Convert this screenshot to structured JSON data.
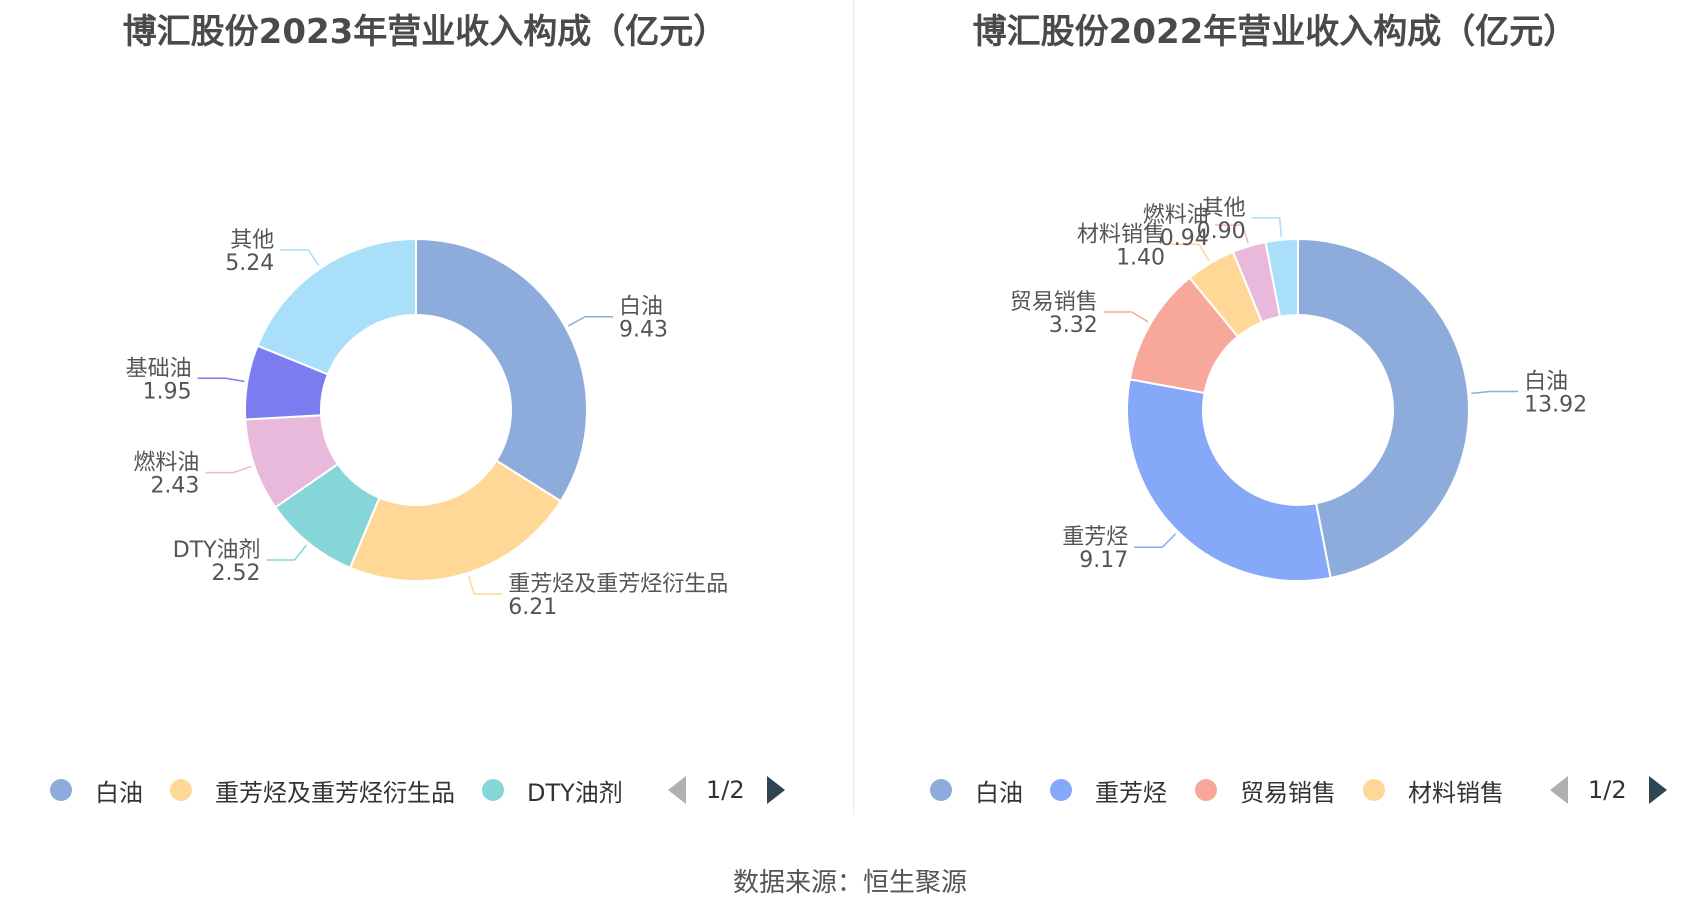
{
  "source_text": "数据来源：恒生聚源",
  "chart_data": [
    {
      "type": "pie",
      "title": "博汇股份2023年营业收入构成（亿元）",
      "slices": [
        {
          "name": "白油",
          "value": 9.43,
          "value_label": "9.43",
          "color": "#8eacdb"
        },
        {
          "name": "重芳烃及重芳烃衍生品",
          "value": 6.21,
          "value_label": "6.21",
          "color": "#ffd898"
        },
        {
          "name": "DTY油剂",
          "value": 2.52,
          "value_label": "2.52",
          "color": "#86d6d9"
        },
        {
          "name": "燃料油",
          "value": 2.43,
          "value_label": "2.43",
          "color": "#e8b9da"
        },
        {
          "name": "基础油",
          "value": 1.95,
          "value_label": "1.95",
          "color": "#7b7cf0"
        },
        {
          "name": "其他",
          "value": 5.24,
          "value_label": "5.24",
          "color": "#a9dff8"
        }
      ],
      "legend_visible": [
        "白油",
        "重芳烃及重芳烃衍生品",
        "DTY油剂"
      ],
      "legend_page": "1/2",
      "legend_placement": "bottom"
    },
    {
      "type": "pie",
      "title": "博汇股份2022年营业收入构成（亿元）",
      "slices": [
        {
          "name": "白油",
          "value": 13.92,
          "value_label": "13.92",
          "color": "#8eacdb"
        },
        {
          "name": "重芳烃",
          "value": 9.17,
          "value_label": "9.17",
          "color": "#86a8f8"
        },
        {
          "name": "贸易销售",
          "value": 3.32,
          "value_label": "3.32",
          "color": "#f8a89a"
        },
        {
          "name": "材料销售",
          "value": 1.4,
          "value_label": "1.40",
          "color": "#ffd898"
        },
        {
          "name": "燃料油",
          "value": 0.94,
          "value_label": "0.94",
          "color": "#e8b9da"
        },
        {
          "name": "其他",
          "value": 0.9,
          "value_label": "0.90",
          "color": "#a9dff8"
        }
      ],
      "legend_visible": [
        "白油",
        "重芳烃",
        "贸易销售",
        "材料销售"
      ],
      "legend_page": "1/2",
      "legend_placement": "bottom"
    }
  ]
}
